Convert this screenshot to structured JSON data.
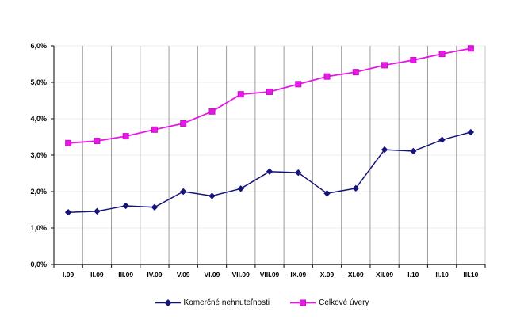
{
  "figure": {
    "background": "#FFFFFF"
  },
  "chart_data": {
    "type": "line",
    "title": "",
    "xlabel": "",
    "ylabel": "",
    "categories": [
      "I.09",
      "II.09",
      "III.09",
      "IV.09",
      "V.09",
      "VI.09",
      "VII.09",
      "VIII.09",
      "IX.09",
      "X.09",
      "XI.09",
      "XII.09",
      "I.10",
      "II.10",
      "III.10"
    ],
    "series": [
      {
        "name": "Komerčné nehnuteľnosti",
        "marker": "diamond",
        "color": "#14147A",
        "values": [
          1.43,
          1.46,
          1.61,
          1.57,
          2.0,
          1.88,
          2.08,
          2.55,
          2.52,
          1.95,
          2.09,
          3.15,
          3.11,
          3.42,
          3.63
        ]
      },
      {
        "name": "Celkové úvery",
        "marker": "square",
        "color": "#E619E6",
        "marker_edge": "#C413C4",
        "values": [
          3.33,
          3.39,
          3.52,
          3.7,
          3.87,
          4.2,
          4.67,
          4.74,
          4.95,
          5.16,
          5.28,
          5.47,
          5.61,
          5.78,
          5.93
        ]
      }
    ],
    "ylim": [
      0,
      6
    ],
    "y_ticks": [
      "0,0%",
      "1,0%",
      "2,0%",
      "3,0%",
      "4,0%",
      "5,0%",
      "6,0%"
    ],
    "grid": "vertical-dark-horizontal-light",
    "legend_position": "bottom",
    "colors": {
      "v_grid": "#9C9C9C",
      "h_grid": "#ECECEC",
      "plot_border": "#C6C6C6",
      "axis": "#2B2B2B",
      "text": "#000000"
    }
  }
}
